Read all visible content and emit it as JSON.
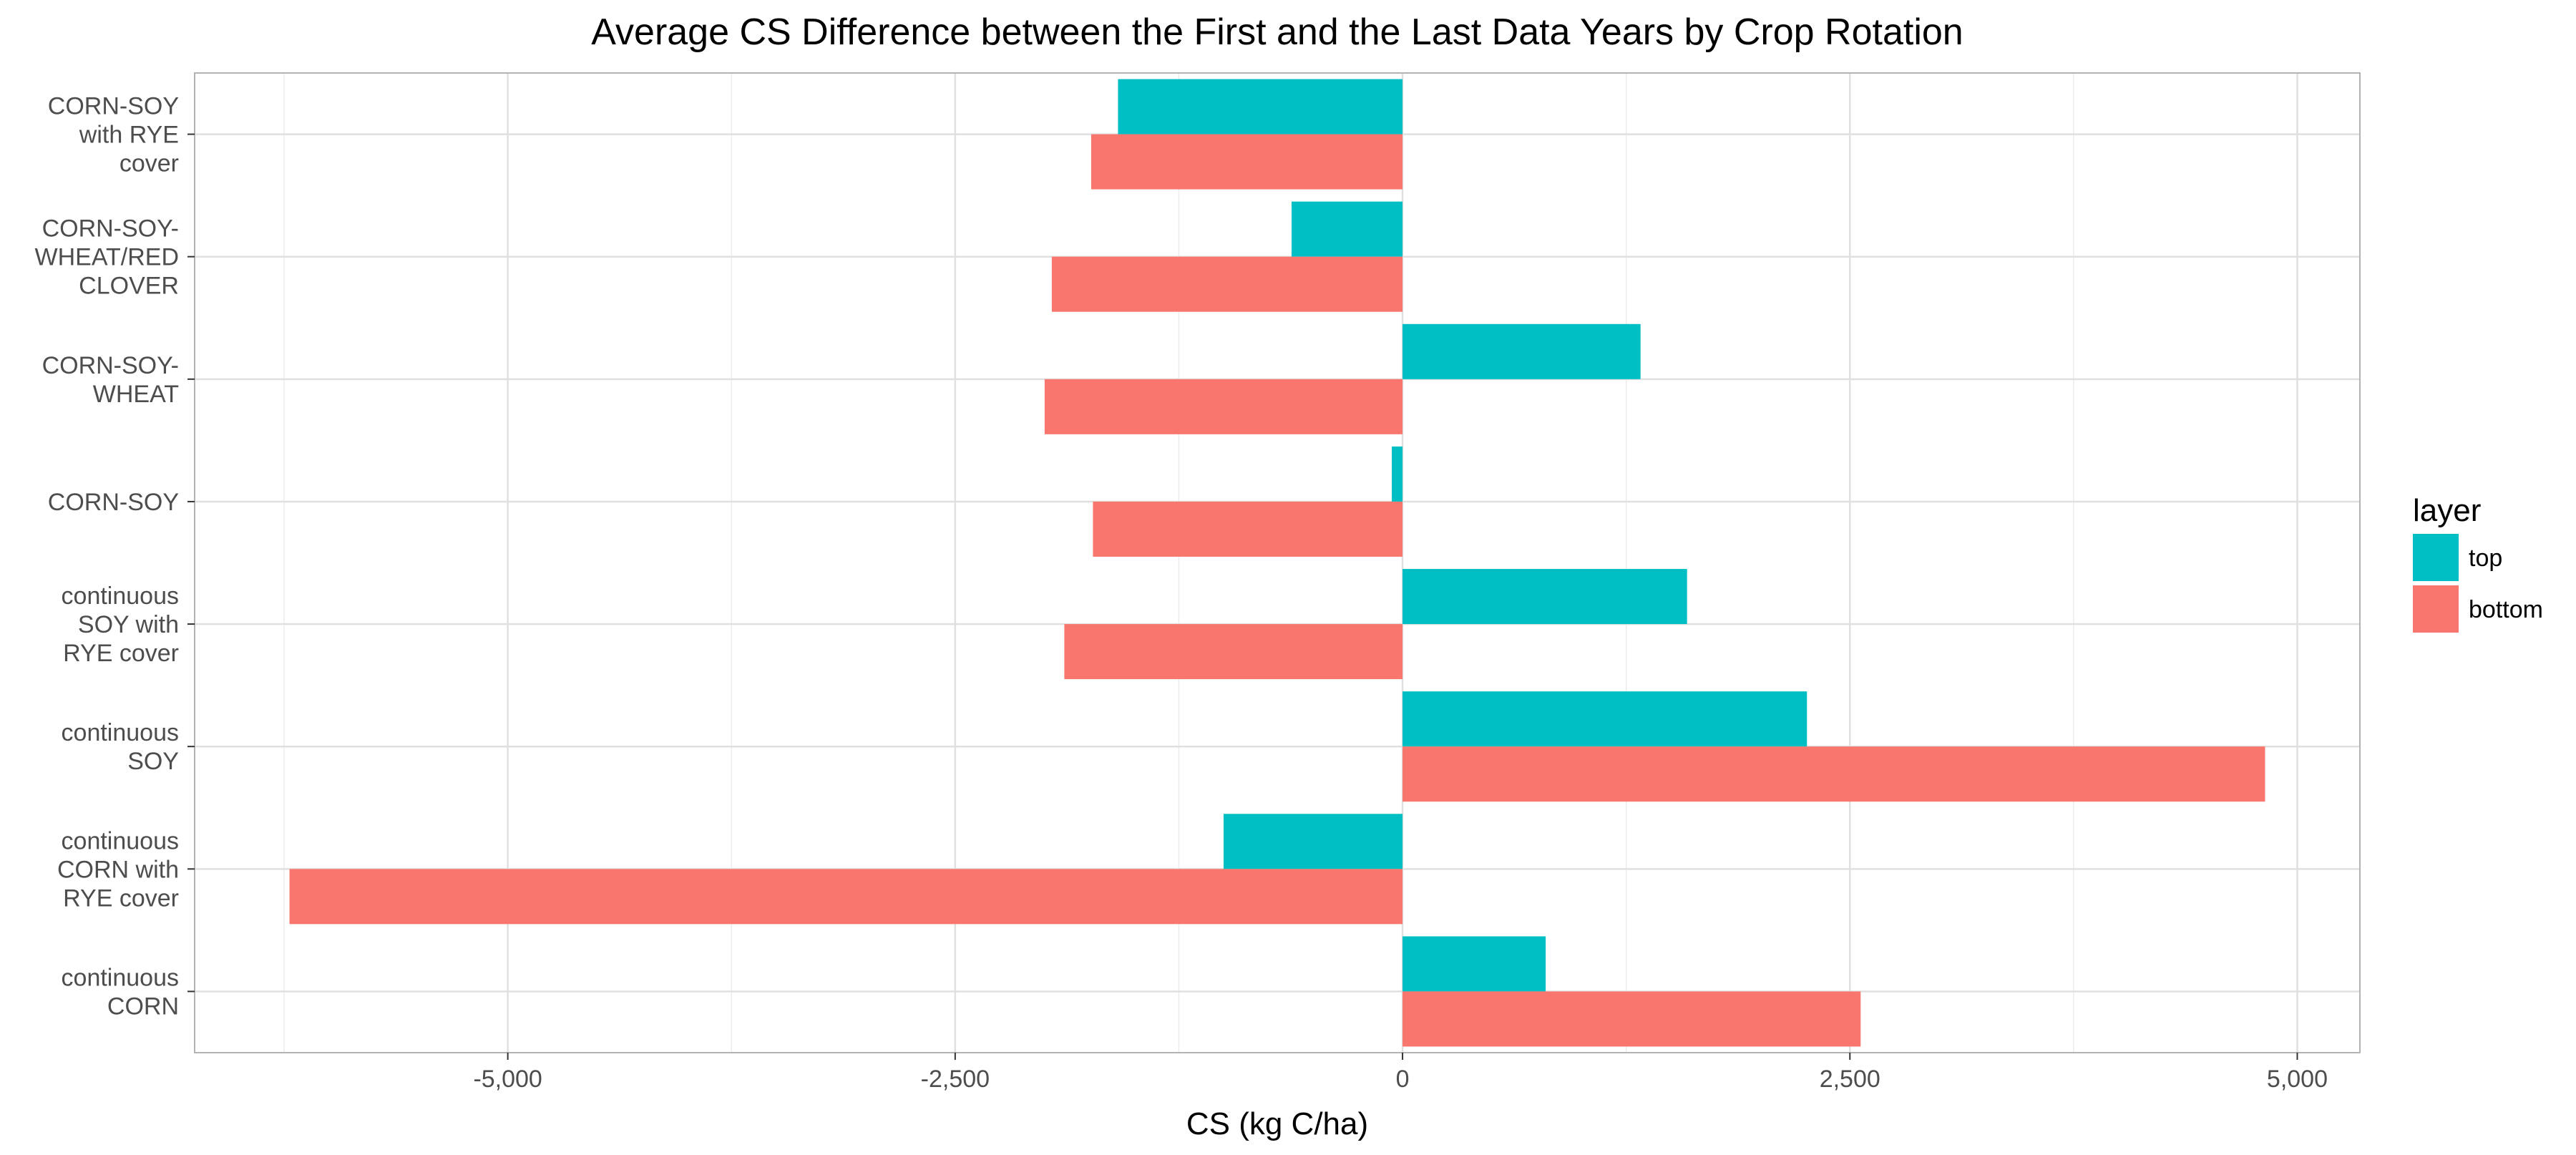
{
  "chart_data": {
    "type": "bar",
    "orientation": "horizontal",
    "title": "Average CS Difference between the First and the Last Data Years by Crop Rotation",
    "xlabel": "CS (kg C/ha)",
    "ylabel": "",
    "xlim": [
      -6750,
      5350
    ],
    "x_ticks": [
      -5000,
      -2500,
      0,
      2500,
      5000
    ],
    "x_tick_labels": [
      "-5,000",
      "-2,500",
      "0",
      "2,500",
      "5,000"
    ],
    "grid": true,
    "categories": [
      [
        "CORN-SOY",
        "with RYE",
        "cover"
      ],
      [
        "CORN-SOY-",
        "WHEAT/RED",
        "CLOVER"
      ],
      [
        "CORN-SOY-",
        "WHEAT"
      ],
      [
        "CORN-SOY"
      ],
      [
        "continuous",
        "SOY with",
        "RYE cover"
      ],
      [
        "continuous",
        "SOY"
      ],
      [
        "continuous",
        "CORN with",
        "RYE cover"
      ],
      [
        "continuous",
        "CORN"
      ]
    ],
    "series": [
      {
        "name": "top",
        "color": "#00BFC4",
        "values": [
          -1590,
          -620,
          1330,
          -60,
          1590,
          2260,
          -1000,
          800
        ]
      },
      {
        "name": "bottom",
        "color": "#F8766D",
        "values": [
          -1740,
          -1960,
          -2000,
          -1730,
          -1890,
          4820,
          -6220,
          2560
        ]
      }
    ],
    "legend": {
      "title": "layer",
      "position": "right"
    }
  }
}
